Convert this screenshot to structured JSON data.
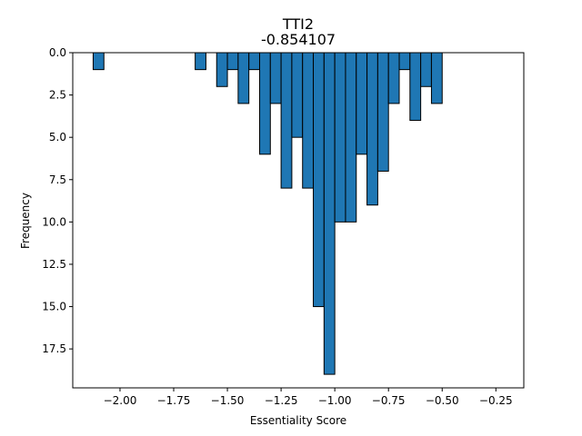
{
  "chart_data": {
    "type": "bar",
    "title": "TTI2",
    "subtitle": "-0.854107",
    "xlabel": "Essentiality Score",
    "ylabel": "Frequency",
    "y_axis_inverted": true,
    "x_axis_position": "top",
    "xlim": [
      -2.22,
      -0.12
    ],
    "ylim": [
      0,
      19.8
    ],
    "bin_width": 0.05,
    "x_ticks": [
      -2.0,
      -1.75,
      -1.5,
      -1.25,
      -1.0,
      -0.75,
      -0.5,
      -0.25
    ],
    "x_tick_labels": [
      "−2.00",
      "−1.75",
      "−1.50",
      "−1.25",
      "−1.00",
      "−0.75",
      "−0.50",
      "−0.25"
    ],
    "y_ticks": [
      0,
      2.5,
      5,
      7.5,
      10,
      12.5,
      15,
      17.5
    ],
    "y_tick_labels": [
      "0.0",
      "2.5",
      "5.0",
      "7.5",
      "10.0",
      "12.5",
      "15.0",
      "17.5"
    ],
    "bar_color": "#1f77b4",
    "edge_color": "#000000",
    "bins": [
      {
        "x0": -2.125,
        "count": 1
      },
      {
        "x0": -1.65,
        "count": 1
      },
      {
        "x0": -1.55,
        "count": 2
      },
      {
        "x0": -1.5,
        "count": 1
      },
      {
        "x0": -1.45,
        "count": 3
      },
      {
        "x0": -1.4,
        "count": 1
      },
      {
        "x0": -1.35,
        "count": 6
      },
      {
        "x0": -1.3,
        "count": 3
      },
      {
        "x0": -1.25,
        "count": 8
      },
      {
        "x0": -1.2,
        "count": 5
      },
      {
        "x0": -1.15,
        "count": 8
      },
      {
        "x0": -1.1,
        "count": 15
      },
      {
        "x0": -1.05,
        "count": 19
      },
      {
        "x0": -1.0,
        "count": 10
      },
      {
        "x0": -0.95,
        "count": 10
      },
      {
        "x0": -0.9,
        "count": 6
      },
      {
        "x0": -0.85,
        "count": 9
      },
      {
        "x0": -0.8,
        "count": 7
      },
      {
        "x0": -0.75,
        "count": 3
      },
      {
        "x0": -0.7,
        "count": 1
      },
      {
        "x0": -0.65,
        "count": 4
      },
      {
        "x0": -0.6,
        "count": 2
      },
      {
        "x0": -0.55,
        "count": 3
      }
    ]
  }
}
